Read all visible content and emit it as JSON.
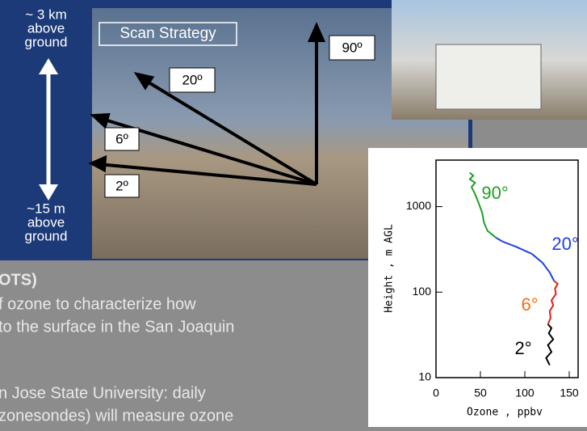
{
  "scan": {
    "title": "Scan Strategy",
    "top_label": [
      "~ 3 km",
      "above",
      "ground"
    ],
    "bottom_label": [
      "~15 m",
      "above",
      "ground"
    ],
    "angles": [
      "90º",
      "20º",
      "6º",
      "2º"
    ]
  },
  "text_lines": [
    "OTS)",
    "f ozone to characterize how",
    "to the surface in the San Joaquin",
    "n Jose State University: daily",
    "zonesondes) will measure ozone"
  ],
  "chart_data": {
    "type": "line",
    "xlabel": "Ozone , ppbv",
    "ylabel": "Height , m AGL",
    "xlim": [
      0,
      160
    ],
    "xticks": [
      0,
      50,
      100,
      150
    ],
    "ylim": [
      10,
      3500
    ],
    "yticks": [
      10,
      100,
      1000
    ],
    "log_y": true,
    "series": [
      {
        "name": "2°",
        "color": "#000000",
        "label_color": "#000000",
        "x": [
          128,
          124,
          130,
          126,
          132,
          127,
          130,
          126
        ],
        "values": [
          14,
          17,
          20,
          24,
          28,
          33,
          38,
          42
        ]
      },
      {
        "name": "6°",
        "color": "#e0201c",
        "label_color": "#f07010",
        "x": [
          126,
          129,
          128,
          132,
          130,
          135,
          134,
          137,
          133
        ],
        "values": [
          42,
          50,
          60,
          70,
          80,
          95,
          110,
          125,
          135
        ]
      },
      {
        "name": "20°",
        "color": "#2040e0",
        "label_color": "#2040e0",
        "x": [
          133,
          128,
          120,
          108,
          90,
          75,
          68
        ],
        "values": [
          135,
          170,
          220,
          280,
          340,
          390,
          430
        ]
      },
      {
        "name": "90°",
        "color": "#20a020",
        "label_color": "#20a020",
        "x": [
          68,
          58,
          54,
          52,
          48,
          44,
          40,
          44,
          38,
          42,
          38
        ],
        "values": [
          430,
          520,
          650,
          850,
          1100,
          1400,
          1700,
          1900,
          2100,
          2300,
          2500
        ]
      }
    ]
  }
}
